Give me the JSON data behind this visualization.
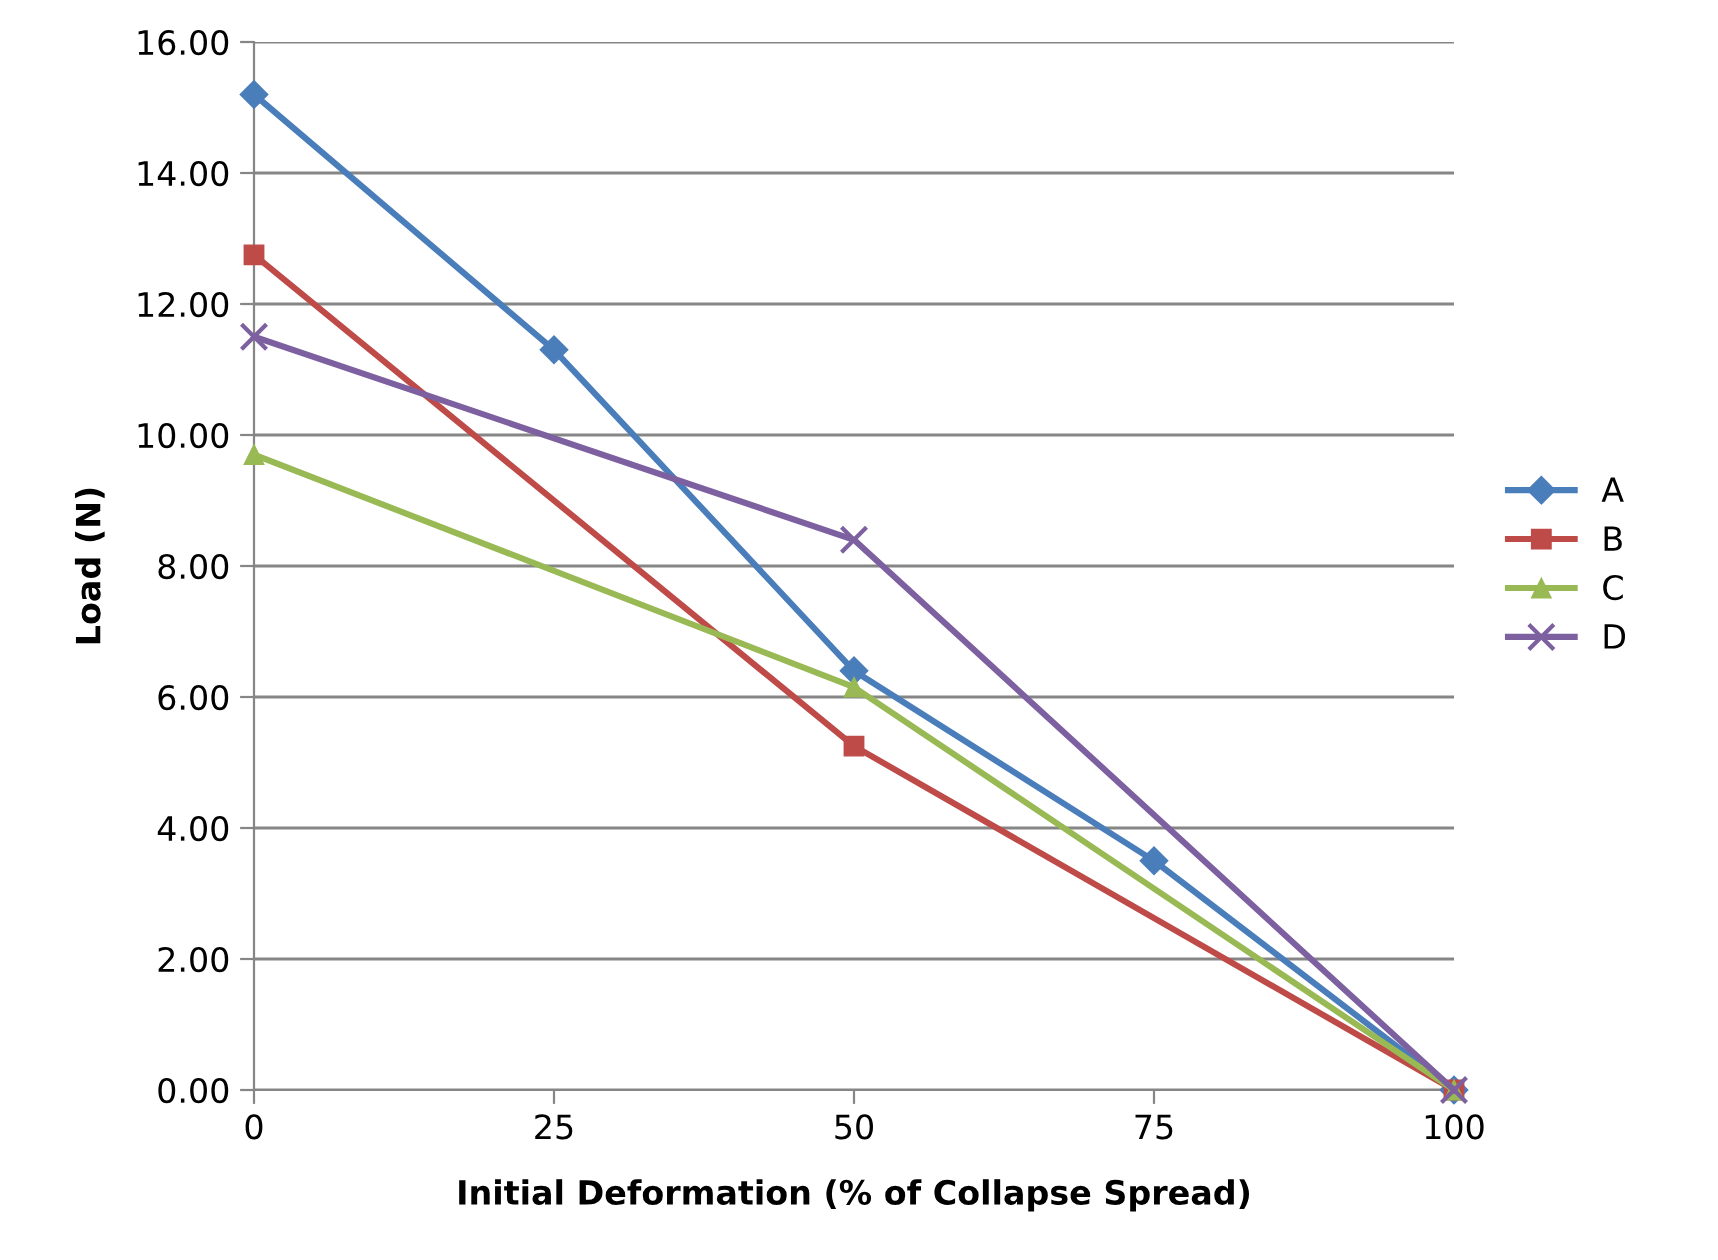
{
  "chart_data": {
    "type": "line",
    "xlabel": "Initial Deformation (% of Collapse Spread)",
    "ylabel": "Load (N)",
    "xlim": [
      0,
      100
    ],
    "xticks": [
      0,
      25,
      50,
      75,
      100
    ],
    "ylim": [
      0,
      16
    ],
    "yticks": [
      {
        "value": 0,
        "label": "0.00"
      },
      {
        "value": 2,
        "label": "2.00"
      },
      {
        "value": 4,
        "label": "4.00"
      },
      {
        "value": 6,
        "label": "6.00"
      },
      {
        "value": 8,
        "label": "8.00"
      },
      {
        "value": 10,
        "label": "10.00"
      },
      {
        "value": 12,
        "label": "12.00"
      },
      {
        "value": 14,
        "label": "14.00"
      },
      {
        "value": 16,
        "label": "16.00"
      }
    ],
    "grid": "y",
    "legend": "right",
    "line_style": "solid",
    "series": [
      {
        "name": "A",
        "color": "#4a7ebb",
        "marker": "diamond",
        "x": [
          0,
          25,
          50,
          75,
          100
        ],
        "values": [
          15.2,
          11.3,
          6.4,
          3.5,
          0
        ]
      },
      {
        "name": "B",
        "color": "#be4b48",
        "marker": "square",
        "x": [
          0,
          50,
          100
        ],
        "values": [
          12.75,
          5.25,
          0
        ]
      },
      {
        "name": "C",
        "color": "#98b954",
        "marker": "triangle",
        "x": [
          0,
          50,
          100
        ],
        "values": [
          9.7,
          6.15,
          0
        ]
      },
      {
        "name": "D",
        "color": "#7d60a0",
        "marker": "cross",
        "x": [
          0,
          50,
          100
        ],
        "values": [
          11.5,
          8.4,
          0
        ]
      }
    ]
  }
}
